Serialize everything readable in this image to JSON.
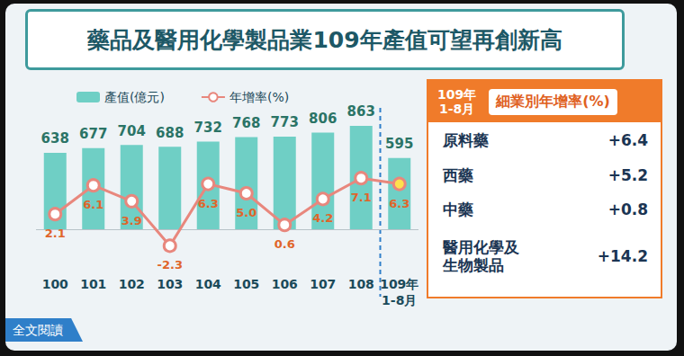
{
  "header": {
    "title": "藥品及醫用化學製品業109年產值可望再創新高"
  },
  "chart_data": {
    "type": "bar",
    "categories": [
      "100",
      "101",
      "102",
      "103",
      "104",
      "105",
      "106",
      "107",
      "108",
      "109年\n1-8月"
    ],
    "series": [
      {
        "name": "產值(億元)",
        "type": "bar",
        "color": "#6fcfc5",
        "values": [
          638,
          677,
          704,
          688,
          732,
          768,
          773,
          806,
          863,
          595
        ]
      },
      {
        "name": "年增率(%)",
        "type": "line",
        "axis": "y2",
        "color": "#e8877d",
        "marker": "circle",
        "values": [
          2.1,
          6.1,
          3.9,
          -2.3,
          6.3,
          5.0,
          0.6,
          4.2,
          7.1,
          6.3
        ],
        "value_labels": [
          "2.1",
          "6.1",
          "3.9",
          "-2.3",
          "6.3",
          "5.0",
          "0.6",
          "4.2",
          "7.1",
          "6.3"
        ]
      }
    ],
    "ylim": [
      -300,
      1200
    ],
    "yticks": [
      -300,
      0,
      300,
      600,
      900,
      1200
    ],
    "y2lim": [
      -5,
      20
    ],
    "y2ticks": [
      -5,
      0,
      5,
      10,
      15,
      20
    ],
    "grid": false,
    "legend": "top-left",
    "data_labels": true,
    "tick_labels": "x"
  },
  "panel": {
    "header": "109年\n1-8月",
    "title": "細業別年增率(%)",
    "rows": [
      {
        "label": "原料藥",
        "value": "+6.4"
      },
      {
        "label": "西藥",
        "value": "+5.2"
      },
      {
        "label": "中藥",
        "value": "+0.8"
      },
      {
        "label": "醫用化學及\n生物製品",
        "value": "+14.2"
      }
    ]
  },
  "footer": {
    "link": "全文閱讀"
  }
}
